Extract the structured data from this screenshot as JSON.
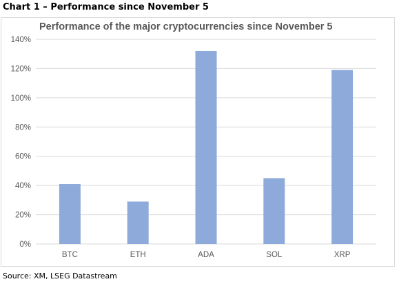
{
  "heading": "Chart 1 – Performance since November 5",
  "source": "Source: XM, LSEG Datastream",
  "colors": {
    "bar": "#8eaadb",
    "grid": "#d9d9d9",
    "tick_text": "#595959"
  },
  "chart_data": {
    "type": "bar",
    "title": "Performance of the major cryptocurrencies since November 5",
    "xlabel": "",
    "ylabel": "",
    "categories": [
      "BTC",
      "ETH",
      "ADA",
      "SOL",
      "XRP"
    ],
    "values": [
      41,
      29,
      132,
      45,
      119
    ],
    "unit": "%",
    "ylim": [
      0,
      140
    ],
    "yticks": [
      0,
      20,
      40,
      60,
      80,
      100,
      120,
      140
    ],
    "ytick_labels": [
      "0%",
      "20%",
      "40%",
      "60%",
      "80%",
      "100%",
      "120%",
      "140%"
    ],
    "grid": true,
    "legend": "none"
  }
}
